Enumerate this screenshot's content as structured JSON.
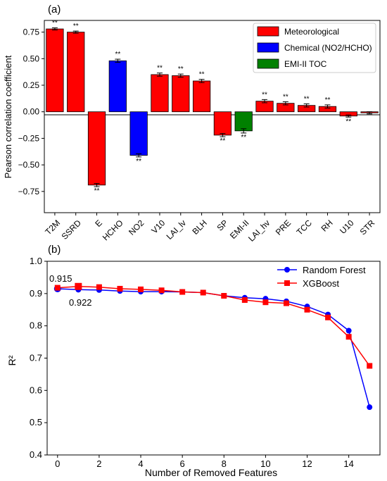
{
  "panel_a": {
    "label": "(a)",
    "ylabel": "Pearson correlation coefficient",
    "significance_mark": "**",
    "legend": [
      {
        "name": "Meteorological",
        "color": "#ff0000"
      },
      {
        "name": "Chemical (NO2/HCHO)",
        "color": "#0000ff"
      },
      {
        "name": "EMI-II TOC",
        "color": "#008000"
      }
    ]
  },
  "panel_b": {
    "label": "(b)",
    "xlabel": "Number of Removed Features",
    "ylabel": "R²",
    "annotation_rf": "0.915",
    "annotation_xgb": "0.922",
    "annotation_rf_color": "#0000ff",
    "annotation_xgb_color": "#ff0000",
    "legend": [
      {
        "name": "Random Forest",
        "color": "#0000ff"
      },
      {
        "name": "XGBoost",
        "color": "#ff0000"
      }
    ]
  },
  "chart_data": [
    {
      "type": "bar",
      "title": "(a)",
      "xlabel": "",
      "ylabel": "Pearson correlation coefficient",
      "ylim": [
        -0.95,
        0.86
      ],
      "yticks": [
        -0.75,
        -0.5,
        -0.25,
        0.0,
        0.25,
        0.5,
        0.75
      ],
      "ytick_labels": [
        "−0.75",
        "−0.50",
        "−0.25",
        "0.00",
        "0.25",
        "0.50",
        "0.75"
      ],
      "categories": [
        "T2M",
        "SSRD",
        "E",
        "HCHO",
        "NO2",
        "V10",
        "LAI_lv",
        "BLH",
        "SP",
        "EMI-II",
        "LAI_hv",
        "PRE",
        "TCC",
        "RH",
        "U10",
        "STR"
      ],
      "values": [
        0.78,
        0.75,
        -0.69,
        0.48,
        -0.41,
        0.35,
        0.34,
        0.29,
        -0.22,
        -0.18,
        0.1,
        0.08,
        0.06,
        0.05,
        -0.04,
        -0.01
      ],
      "errors": [
        0.01,
        0.01,
        0.015,
        0.015,
        0.015,
        0.015,
        0.015,
        0.015,
        0.015,
        0.02,
        0.015,
        0.015,
        0.015,
        0.015,
        0.01,
        0.01
      ],
      "groups": [
        "Meteorological",
        "Meteorological",
        "Meteorological",
        "Chemical (NO2/HCHO)",
        "Chemical (NO2/HCHO)",
        "Meteorological",
        "Meteorological",
        "Meteorological",
        "Meteorological",
        "EMI-II TOC",
        "Meteorological",
        "Meteorological",
        "Meteorological",
        "Meteorological",
        "Meteorological",
        "Meteorological"
      ],
      "significant": [
        true,
        true,
        true,
        true,
        true,
        true,
        true,
        true,
        true,
        true,
        true,
        true,
        true,
        true,
        true,
        false
      ],
      "legend_position": "top-right",
      "grid": false
    },
    {
      "type": "line",
      "title": "(b)",
      "xlabel": "Number of Removed Features",
      "ylabel": "R²",
      "xlim": [
        -0.5,
        15.5
      ],
      "ylim": [
        0.4,
        1.0
      ],
      "xticks": [
        0,
        2,
        4,
        6,
        8,
        10,
        12,
        14
      ],
      "yticks": [
        0.4,
        0.5,
        0.6,
        0.7,
        0.8,
        0.9,
        1.0
      ],
      "ytick_labels": [
        "0.4",
        "0.5",
        "0.6",
        "0.7",
        "0.8",
        "0.9",
        "1.0"
      ],
      "x": [
        0,
        1,
        2,
        3,
        4,
        5,
        6,
        7,
        8,
        9,
        10,
        11,
        12,
        13,
        14,
        15
      ],
      "series": [
        {
          "name": "Random Forest",
          "color": "#0000ff",
          "marker": "circle",
          "values": [
            0.915,
            0.912,
            0.911,
            0.908,
            0.906,
            0.906,
            0.905,
            0.903,
            0.893,
            0.887,
            0.884,
            0.876,
            0.86,
            0.835,
            0.785,
            0.548
          ]
        },
        {
          "name": "XGBoost",
          "color": "#ff0000",
          "marker": "square",
          "values": [
            0.918,
            0.922,
            0.92,
            0.915,
            0.913,
            0.91,
            0.905,
            0.903,
            0.893,
            0.88,
            0.873,
            0.87,
            0.85,
            0.826,
            0.766,
            0.676
          ]
        }
      ],
      "annotations": [
        "0.915",
        "0.922"
      ],
      "legend_position": "top-right",
      "grid": false
    }
  ]
}
